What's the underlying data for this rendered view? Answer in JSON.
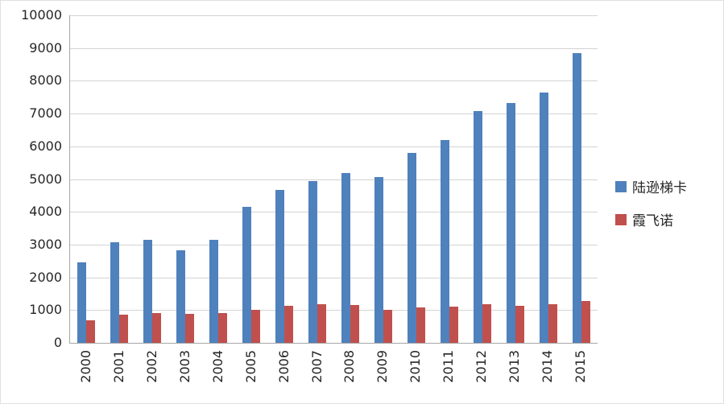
{
  "chart_data": {
    "type": "bar",
    "title": "",
    "xlabel": "",
    "ylabel": "",
    "categories": [
      "2000",
      "2001",
      "2002",
      "2003",
      "2004",
      "2005",
      "2006",
      "2007",
      "2008",
      "2009",
      "2010",
      "2011",
      "2012",
      "2013",
      "2014",
      "2015"
    ],
    "series": [
      {
        "name": "陆逊梯卡",
        "color": "#4f81bd",
        "values": [
          2450,
          3080,
          3150,
          2830,
          3150,
          4150,
          4680,
          4950,
          5180,
          5050,
          5800,
          6200,
          7080,
          7330,
          7650,
          8850
        ]
      },
      {
        "name": "霞飞诺",
        "color": "#c0504d",
        "values": [
          680,
          850,
          900,
          890,
          920,
          1020,
          1130,
          1180,
          1150,
          1010,
          1080,
          1100,
          1180,
          1130,
          1180,
          1280
        ]
      }
    ],
    "ylim": [
      0,
      10000
    ],
    "ytick_step": 1000,
    "ytick_labels": [
      "0",
      "1000",
      "2000",
      "3000",
      "4000",
      "5000",
      "6000",
      "7000",
      "8000",
      "9000",
      "10000"
    ],
    "grid": true,
    "legend_position": "right",
    "colors": {
      "gridline": "#d3d3d3",
      "axis": "#a6a6a6",
      "text": "#262626",
      "background": "#ffffff"
    }
  }
}
